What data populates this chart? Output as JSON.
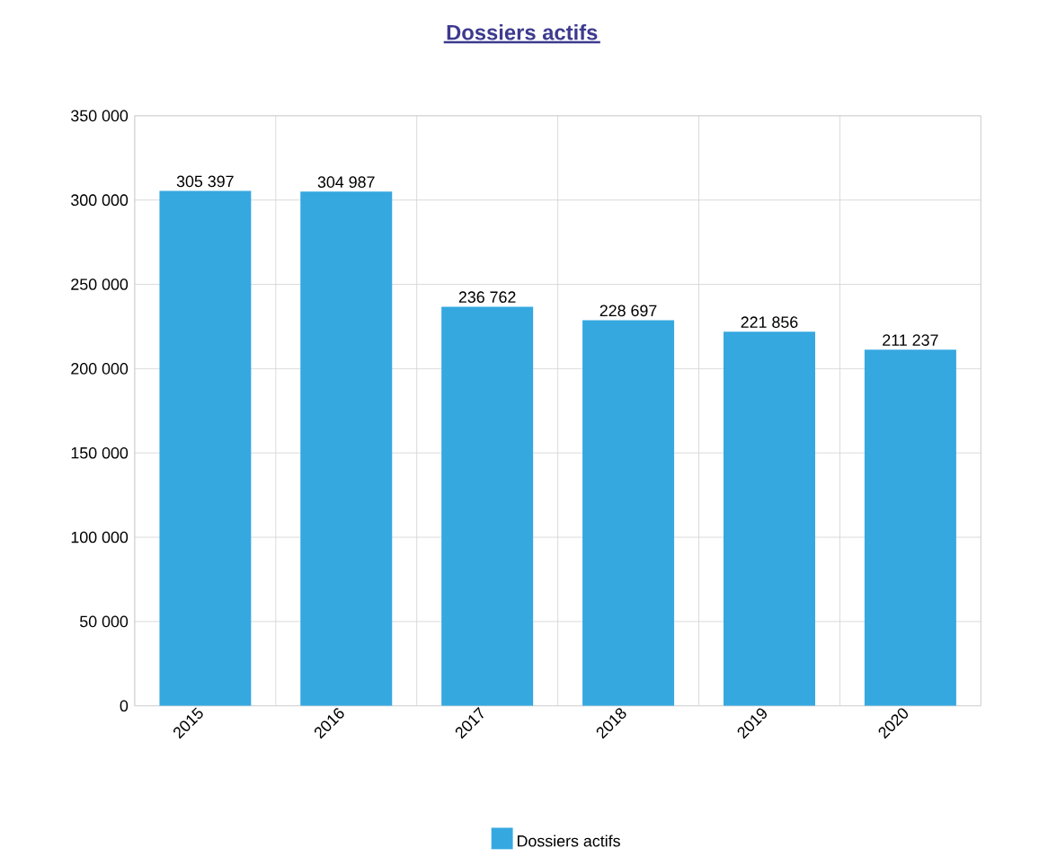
{
  "chart_data": {
    "type": "bar",
    "title": "Dossiers actifs",
    "categories": [
      "2015",
      "2016",
      "2017",
      "2018",
      "2019",
      "2020"
    ],
    "series": [
      {
        "name": "Dossiers actifs",
        "color": "#35a8e0",
        "values": [
          305397,
          304987,
          236762,
          228697,
          221856,
          211237
        ],
        "value_labels": [
          "305 397",
          "304 987",
          "236 762",
          "228 697",
          "221 856",
          "211 237"
        ]
      }
    ],
    "ylim": [
      0,
      350000
    ],
    "yticks": [
      {
        "value": 0,
        "label": "0"
      },
      {
        "value": 50000,
        "label": "50 000"
      },
      {
        "value": 100000,
        "label": "100 000"
      },
      {
        "value": 150000,
        "label": "150 000"
      },
      {
        "value": 200000,
        "label": "200 000"
      },
      {
        "value": 250000,
        "label": "250 000"
      },
      {
        "value": 300000,
        "label": "300 000"
      },
      {
        "value": 350000,
        "label": "350 000"
      }
    ],
    "grid": true,
    "legend": "bottom"
  }
}
